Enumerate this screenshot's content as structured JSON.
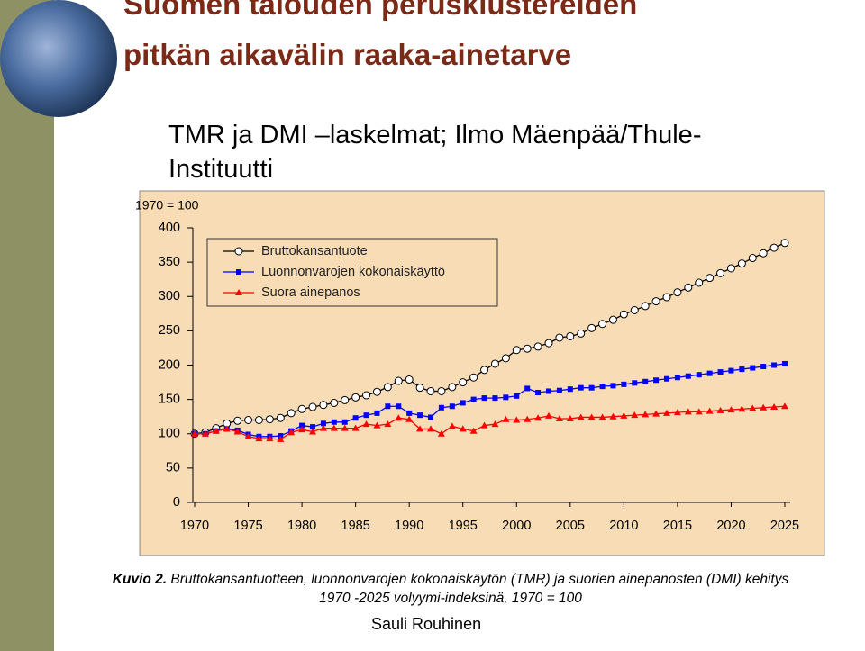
{
  "slide": {
    "title_lines": [
      "Suomen talouden perusklustereiden",
      "pitkän aikavälin raaka-ainetarve"
    ],
    "subtitle_lines": [
      "TMR ja DMI –laskelmat; Ilmo Mäenpää/Thule-",
      "Instituutti"
    ]
  },
  "chart_data": {
    "type": "line",
    "y_label": "1970 = 100",
    "x": [
      1970,
      1971,
      1972,
      1973,
      1974,
      1975,
      1976,
      1977,
      1978,
      1979,
      1980,
      1981,
      1982,
      1983,
      1984,
      1985,
      1986,
      1987,
      1988,
      1989,
      1990,
      1991,
      1992,
      1993,
      1994,
      1995,
      1996,
      1997,
      1998,
      1999,
      2000,
      2001,
      2002,
      2003,
      2004,
      2005,
      2006,
      2007,
      2008,
      2009,
      2010,
      2011,
      2012,
      2013,
      2014,
      2015,
      2016,
      2017,
      2018,
      2019,
      2020,
      2021,
      2022,
      2023,
      2024,
      2025
    ],
    "series": [
      {
        "name": "Bruttokansantuote",
        "color": "#000000",
        "marker": "circle",
        "values": [
          100,
          102,
          108,
          115,
          119,
          120,
          120,
          121,
          123,
          130,
          136,
          139,
          142,
          145,
          149,
          153,
          156,
          161,
          168,
          177,
          179,
          167,
          162,
          162,
          168,
          175,
          182,
          193,
          202,
          210,
          222,
          224,
          227,
          232,
          240,
          242,
          246,
          254,
          260,
          266,
          274,
          280,
          286,
          293,
          299,
          306,
          313,
          320,
          327,
          334,
          341,
          348,
          356,
          363,
          371,
          378
        ]
      },
      {
        "name": "Luonnonvarojen kokonaiskäyttö",
        "color": "#0000ff",
        "marker": "square",
        "values": [
          100,
          100,
          104,
          107,
          105,
          99,
          96,
          96,
          97,
          104,
          112,
          110,
          115,
          117,
          117,
          123,
          127,
          130,
          140,
          140,
          130,
          127,
          124,
          138,
          140,
          145,
          150,
          152,
          152,
          153,
          155,
          166,
          160,
          162,
          163,
          165,
          167,
          167,
          169,
          170,
          172,
          174,
          176,
          178,
          180,
          182,
          184,
          186,
          188,
          190,
          192,
          194,
          196,
          198,
          200,
          202
        ]
      },
      {
        "name": "Suora ainepanos",
        "color": "#ff0000",
        "marker": "triangle",
        "values": [
          100,
          100,
          104,
          107,
          103,
          96,
          93,
          93,
          92,
          102,
          106,
          103,
          108,
          108,
          108,
          108,
          114,
          112,
          114,
          123,
          121,
          107,
          107,
          100,
          111,
          107,
          104,
          112,
          114,
          121,
          120,
          121,
          123,
          126,
          122,
          122,
          124,
          124,
          124,
          125,
          126,
          127,
          128,
          129,
          130,
          131,
          132,
          132,
          133,
          134,
          135,
          136,
          137,
          138,
          139,
          140
        ]
      }
    ],
    "xlim": [
      1970,
      2025
    ],
    "xticks": [
      1970,
      1975,
      1980,
      1985,
      1990,
      1995,
      2000,
      2005,
      2010,
      2015,
      2020,
      2025
    ],
    "ylim": [
      0,
      400
    ],
    "yticks": [
      0,
      50,
      100,
      150,
      200,
      250,
      300,
      350,
      400
    ],
    "grid": false
  },
  "caption": {
    "label": "Kuvio 2.",
    "text": "Bruttokansantuotteen, luonnonvarojen kokonaiskäytön (TMR) ja suorien ainepanosten (DMI) kehitys 1970 -2025 volyymi-indeksinä, 1970 = 100"
  },
  "author": "Sauli Rouhinen"
}
